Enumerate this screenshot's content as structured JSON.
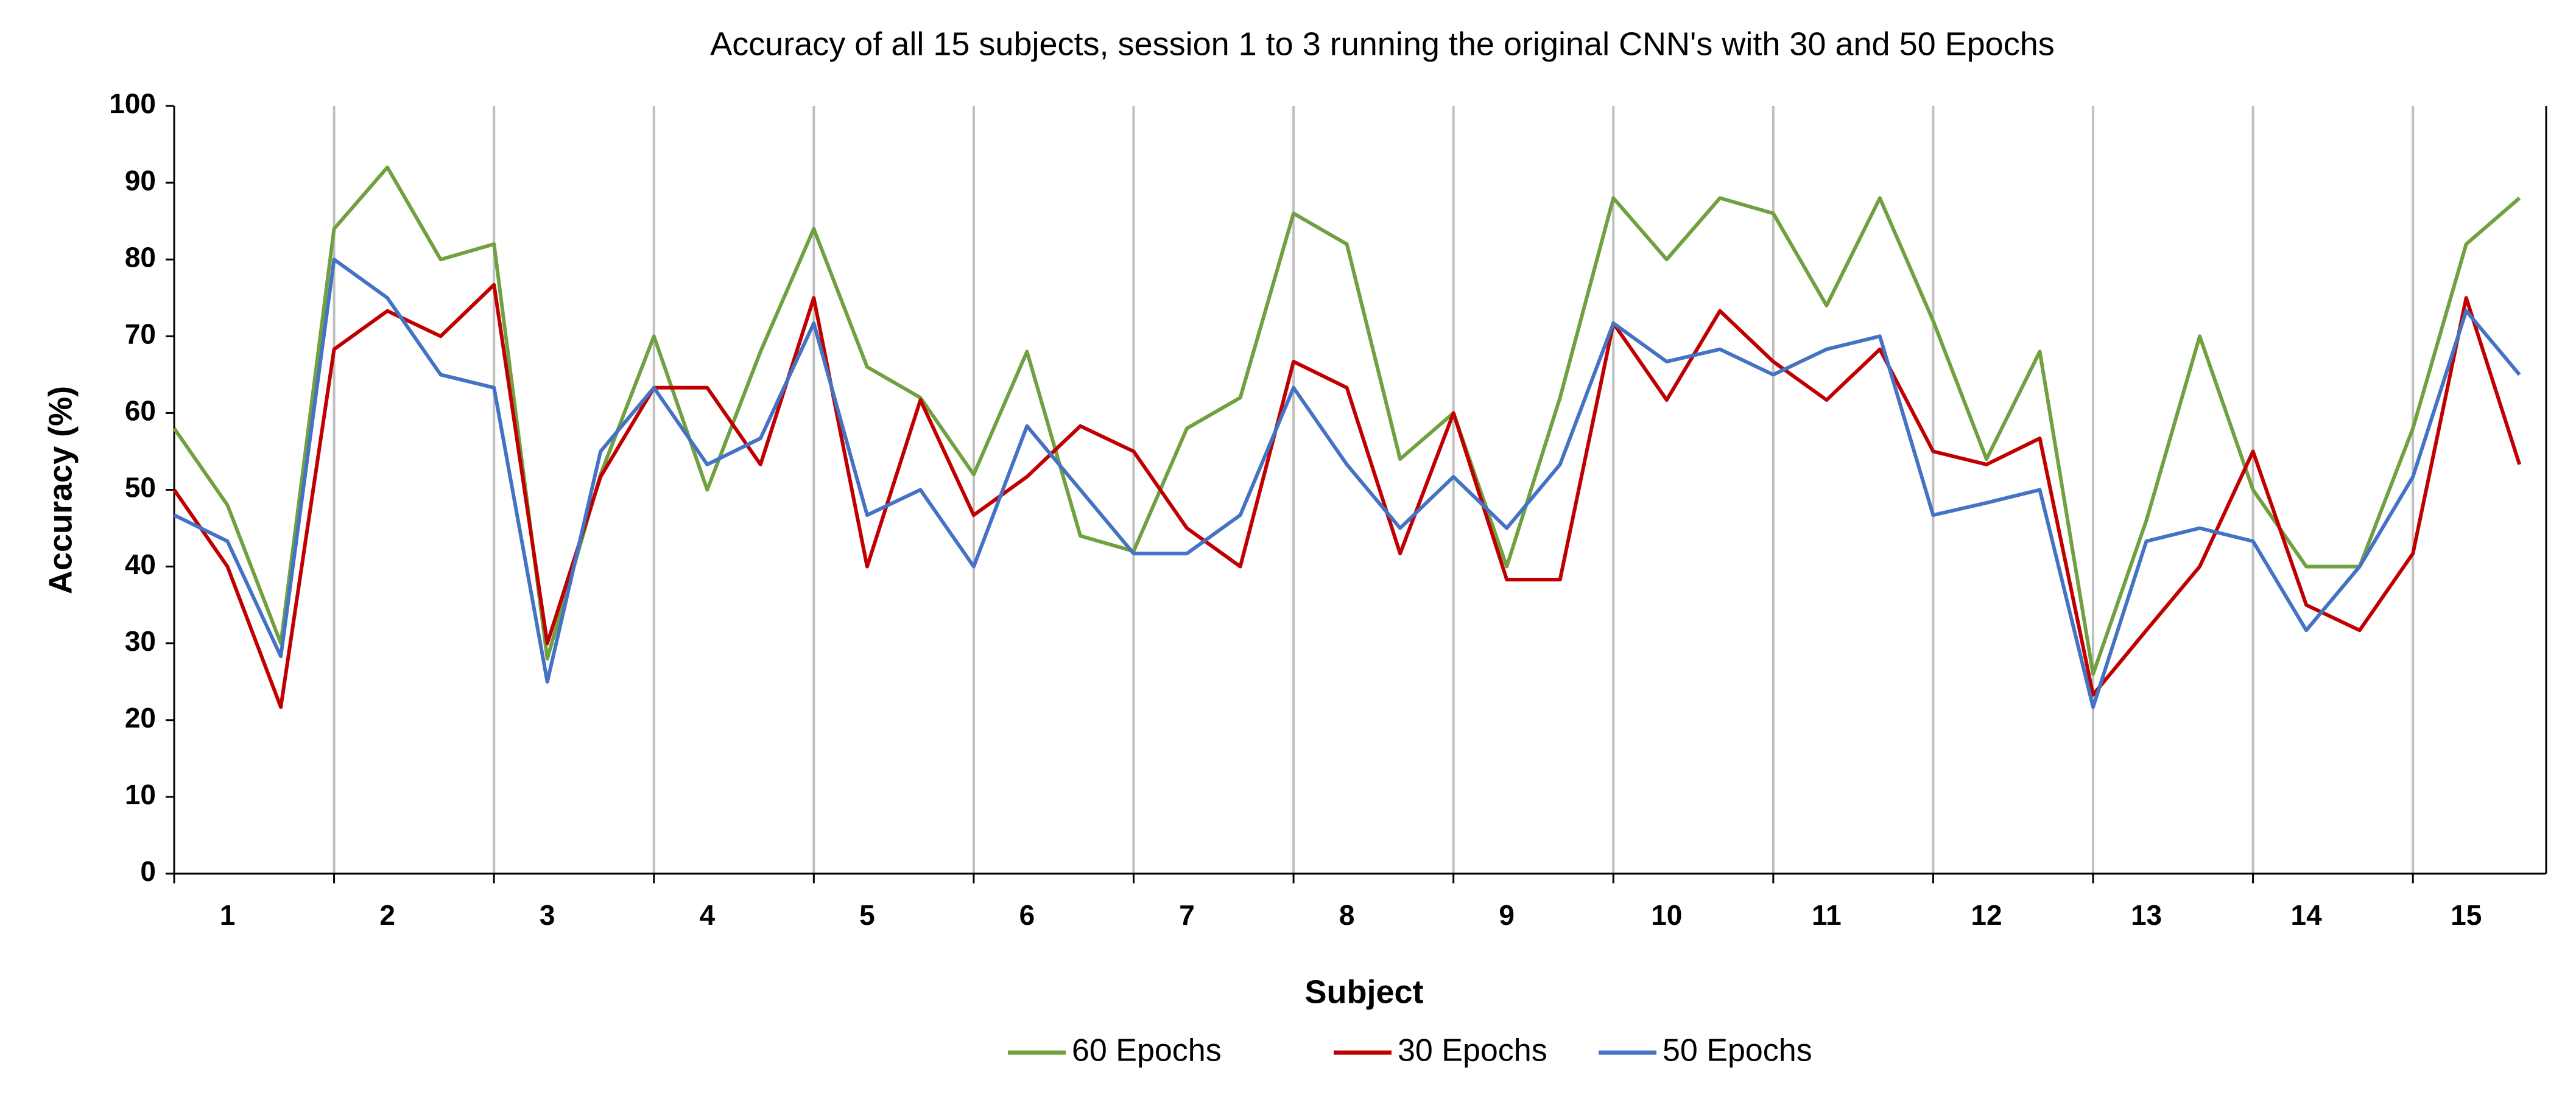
{
  "chart_data": {
    "type": "line",
    "title": "Accuracy of all 15 subjects, session 1 to 3 running the original CNN's with 30 and 50 Epochs",
    "x_label": "Subject",
    "y_label": "Accuracy (%)",
    "categories": [
      null,
      "1",
      null,
      null,
      "2",
      null,
      null,
      "3",
      null,
      null,
      "4",
      null,
      null,
      "5",
      null,
      null,
      "6",
      null,
      null,
      "7",
      null,
      null,
      "8",
      null,
      null,
      "9",
      null,
      null,
      "10",
      null,
      null,
      "11",
      null,
      null,
      "12",
      null,
      null,
      "13",
      null,
      null,
      "14",
      null,
      null,
      "15",
      null
    ],
    "series": [
      {
        "name": "60 Epochs",
        "color": "#70a040",
        "values": [
          58,
          48,
          30,
          84,
          92,
          80,
          82,
          28,
          52,
          70,
          50,
          68,
          84,
          66,
          62,
          52,
          68,
          44,
          42,
          58,
          62,
          86,
          82,
          54,
          60,
          40,
          62,
          88,
          80,
          88,
          86,
          74,
          88,
          72,
          54,
          68,
          26,
          46,
          70,
          50,
          40,
          40,
          58,
          82,
          88
        ]
      },
      {
        "name": "30 Epochs",
        "color": "#c00000",
        "values": [
          50,
          40,
          21.7,
          68.3,
          73.3,
          70,
          76.7,
          30,
          51.7,
          63.3,
          63.3,
          53.3,
          75,
          40,
          61.7,
          46.7,
          51.7,
          58.3,
          55,
          45,
          40,
          66.7,
          63.3,
          41.7,
          60,
          38.3,
          38.3,
          71.7,
          61.7,
          73.3,
          66.7,
          61.7,
          68.3,
          55,
          53.3,
          56.7,
          23.3,
          31.7,
          40,
          55,
          35,
          31.7,
          41.7,
          75,
          53.3
        ]
      },
      {
        "name": "50 Epochs",
        "color": "#4472c4",
        "values": [
          46.7,
          43.3,
          28.3,
          80,
          75,
          65,
          63.3,
          25,
          55,
          63.3,
          53.3,
          56.7,
          71.7,
          46.7,
          50,
          40,
          58.3,
          50,
          41.7,
          41.7,
          46.7,
          63.3,
          53.3,
          45,
          51.7,
          45,
          53.3,
          71.7,
          66.7,
          68.3,
          65,
          68.3,
          70,
          46.7,
          48.3,
          50,
          21.7,
          43.3,
          45,
          43.3,
          31.7,
          40,
          51.7,
          73.3,
          65
        ]
      }
    ],
    "ylim": [
      0,
      100
    ],
    "yticks": [
      0,
      10,
      20,
      30,
      40,
      50,
      60,
      70,
      80,
      90,
      100
    ],
    "legend": "bottom"
  }
}
